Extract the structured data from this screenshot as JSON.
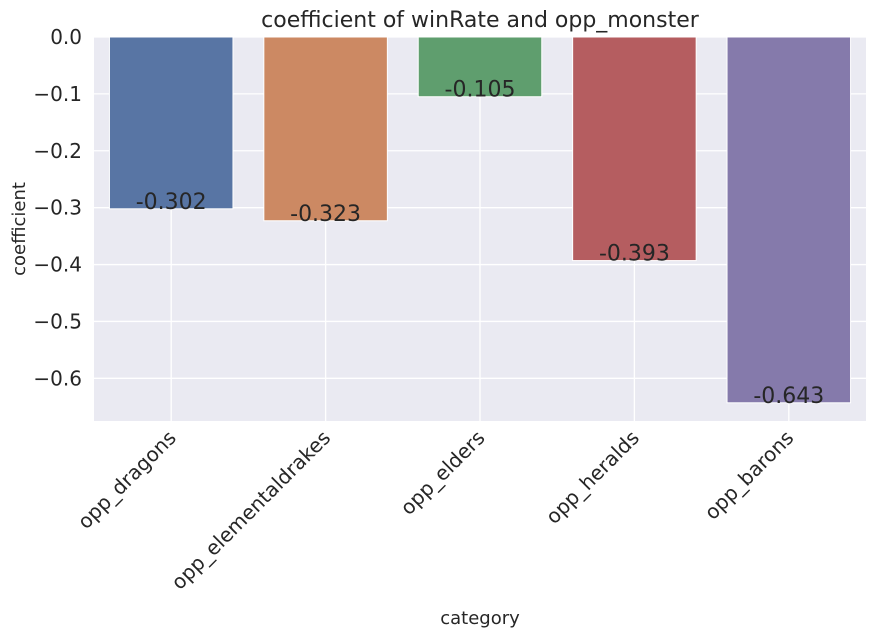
{
  "chart_data": {
    "type": "bar",
    "title": "coefficient of winRate and opp_monster",
    "xlabel": "category",
    "ylabel": "coefficient",
    "categories": [
      "opp_dragons",
      "opp_elementaldrakes",
      "opp_elders",
      "opp_heralds",
      "opp_barons"
    ],
    "values": [
      -0.302,
      -0.323,
      -0.105,
      -0.393,
      -0.643
    ],
    "value_labels": [
      "-0.302",
      "-0.323",
      "-0.105",
      "-0.393",
      "-0.643"
    ],
    "colors": [
      "#5875a4",
      "#cc8963",
      "#5f9e6e",
      "#b55d60",
      "#857aab"
    ],
    "ylim": [
      -0.675,
      0.0
    ],
    "yticks": [
      0.0,
      -0.1,
      -0.2,
      -0.3,
      -0.4,
      -0.5,
      -0.6
    ],
    "ytick_labels": [
      "0.0",
      "−0.1",
      "−0.2",
      "−0.3",
      "−0.4",
      "−0.5",
      "−0.6"
    ],
    "grid": true,
    "background": "#eaeaf2"
  }
}
